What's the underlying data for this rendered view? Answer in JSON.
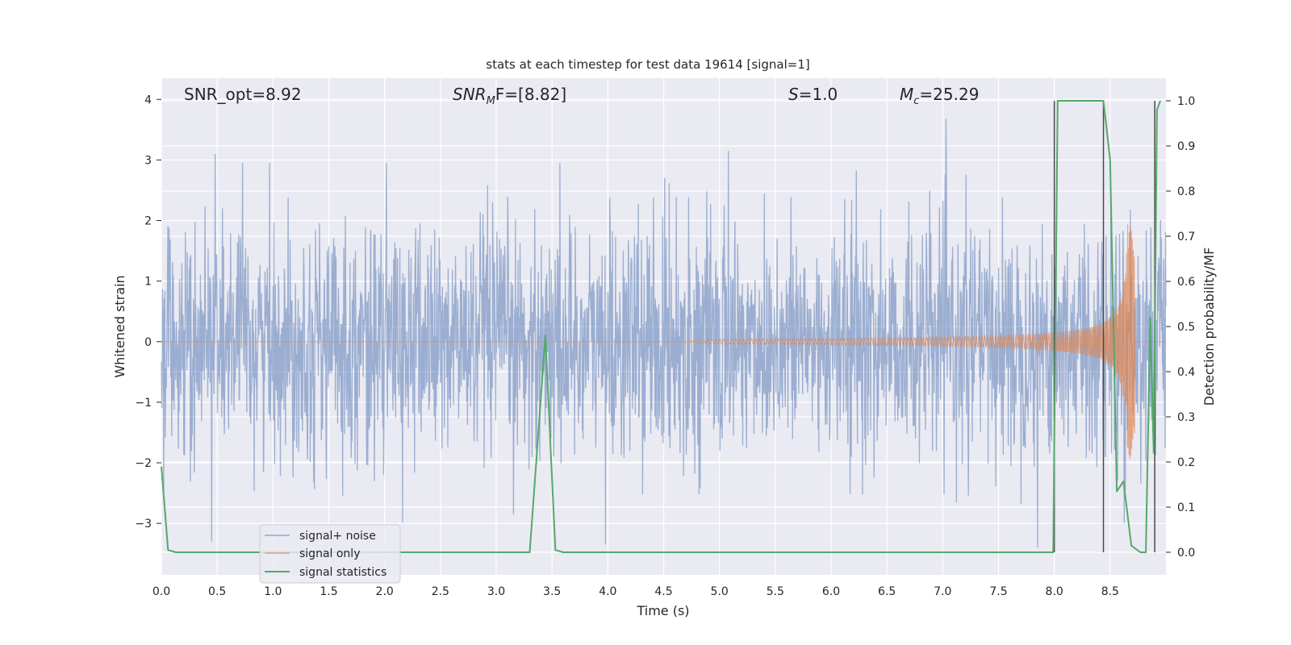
{
  "chart_data": {
    "type": "line",
    "title": "stats at each timestep for test data 19614 [signal=1]",
    "xlabel": "Time (s)",
    "ylabel_left": "Whitened strain",
    "ylabel_right": "Detection probability/MF",
    "xlim": [
      0.0,
      9.0
    ],
    "ylim_left": [
      -3.85,
      4.35
    ],
    "ylim_right": [
      -0.05,
      1.05
    ],
    "x_ticks": [
      "0.0",
      "0.5",
      "1.0",
      "1.5",
      "2.0",
      "2.5",
      "3.0",
      "3.5",
      "4.0",
      "4.5",
      "5.0",
      "5.5",
      "6.0",
      "6.5",
      "7.0",
      "7.5",
      "8.0",
      "8.5"
    ],
    "y_left_ticks": [
      "4",
      "3",
      "2",
      "1",
      "0",
      "−1",
      "−2",
      "−3"
    ],
    "y_right_ticks": [
      "1.0",
      "0.9",
      "0.8",
      "0.7",
      "0.6",
      "0.5",
      "0.4",
      "0.3",
      "0.2",
      "0.1",
      "0.0"
    ],
    "grid": true,
    "legend_placement": "lower-left",
    "annotations": [
      {
        "id": "snr_opt",
        "text": "SNR_opt=8.92"
      },
      {
        "id": "snr_mf",
        "base": "SNR",
        "sub": "M",
        "rest": "F=[8.82]"
      },
      {
        "id": "s",
        "base": "S",
        "rest": "=1.0"
      },
      {
        "id": "mc",
        "base": "M",
        "sub": "c",
        "rest": "=25.29"
      }
    ],
    "series": [
      {
        "name": "signal+ noise",
        "axis": "left",
        "color": "#4c72b0",
        "description_values": {
          "typical_range": [
            -1.6,
            1.7
          ],
          "peaks": [
            {
              "x": 0.48,
              "y": 3.1
            },
            {
              "x": 5.08,
              "y": 3.15
            },
            {
              "x": 7.03,
              "y": 3.68
            }
          ],
          "troughs": [
            {
              "x": 0.45,
              "y": -3.3
            },
            {
              "x": 3.98,
              "y": -3.35
            },
            {
              "x": 7.85,
              "y": -3.4
            }
          ]
        }
      },
      {
        "name": "signal only",
        "axis": "left",
        "color": "#dd8452",
        "chirp": {
          "start_x": 4.6,
          "peak_x": 8.65,
          "end_x": 8.72,
          "peak_amplitude": 1.95
        }
      },
      {
        "name": "signal statistics",
        "axis": "right",
        "color": "#55a868",
        "x": [
          0.0,
          0.06,
          0.13,
          3.3,
          3.44,
          3.53,
          3.6,
          7.99,
          8.03,
          8.09,
          8.44,
          8.5,
          8.56,
          8.62,
          8.69,
          8.77,
          8.82,
          8.86,
          8.89,
          8.92,
          8.95
        ],
        "y": [
          0.19,
          0.005,
          0.0,
          0.0,
          0.48,
          0.005,
          0.0,
          0.0,
          1.0,
          1.0,
          1.0,
          0.87,
          0.135,
          0.157,
          0.015,
          0.0,
          0.0,
          0.52,
          0.22,
          0.98,
          1.0
        ]
      }
    ],
    "vertical_lines": [
      {
        "x": 8.0,
        "y_top": 1.0
      },
      {
        "x": 8.44,
        "y_top": 1.0
      },
      {
        "x": 8.9,
        "y_top": 1.0
      }
    ]
  },
  "colors": {
    "axes_background": "#eaeaf2",
    "grid": "#ffffff",
    "noise": "#4c72b0",
    "signal": "#dd8452",
    "statistics": "#55a868",
    "vline": "#4a4a4a"
  }
}
